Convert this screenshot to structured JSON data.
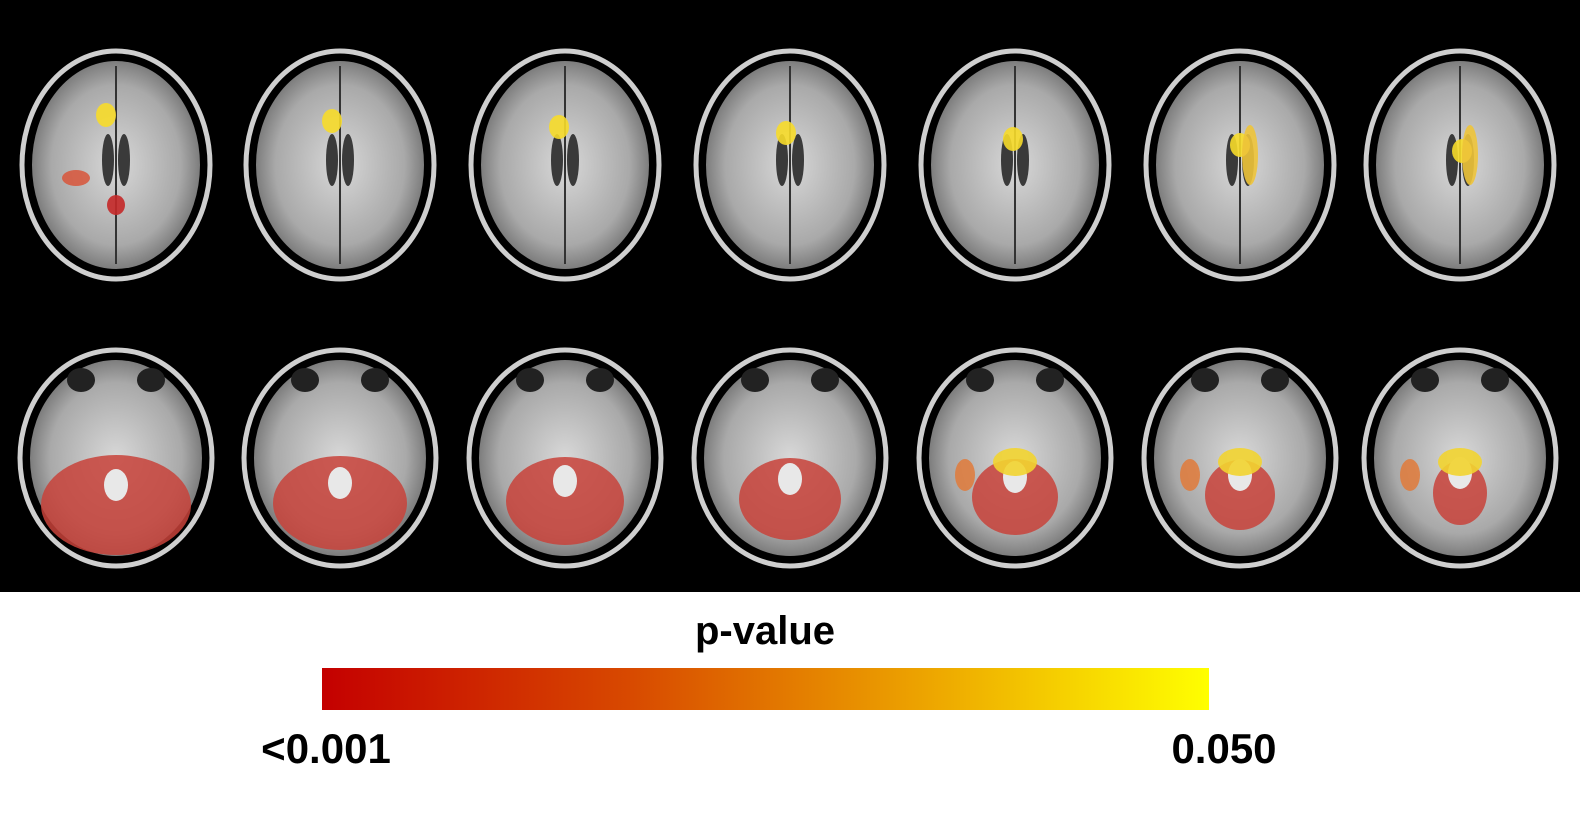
{
  "colorbar": {
    "title": "p-value",
    "min_label": "<0.001",
    "max_label": "0.050"
  }
}
